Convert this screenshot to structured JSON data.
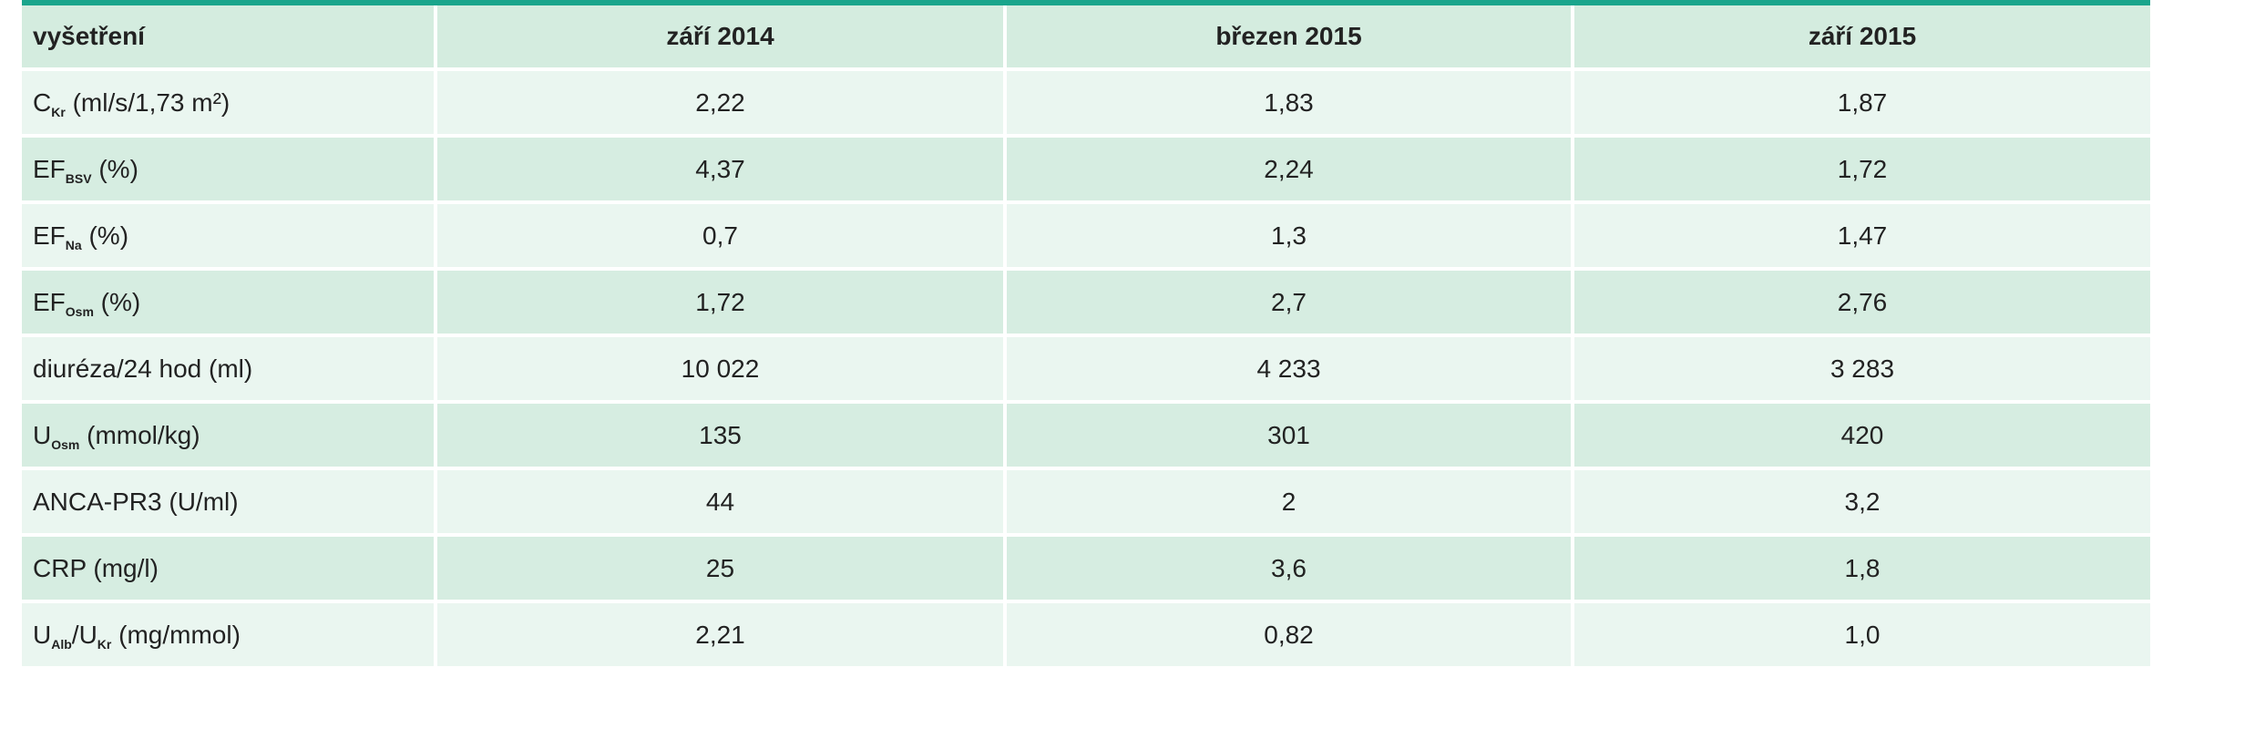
{
  "table": {
    "headers": [
      "vyšetření",
      "září 2014",
      "březen 2015",
      "září 2015"
    ],
    "rows": [
      {
        "label": {
          "main": "C",
          "sub": "Kr",
          "rest": " (ml/s/1,73 m²)"
        },
        "values": [
          "2,22",
          "1,83",
          "1,87"
        ]
      },
      {
        "label": {
          "main": "EF",
          "sub": "BSV",
          "rest": " (%)"
        },
        "values": [
          "4,37",
          "2,24",
          "1,72"
        ]
      },
      {
        "label": {
          "main": "EF",
          "sub": "Na",
          "rest": " (%)"
        },
        "values": [
          "0,7",
          "1,3",
          "1,47"
        ]
      },
      {
        "label": {
          "main": "EF",
          "sub": "Osm",
          "rest": " (%)"
        },
        "values": [
          "1,72",
          "2,7",
          "2,76"
        ]
      },
      {
        "label": {
          "main": "diuréza/24 hod (ml)",
          "sub": "",
          "rest": ""
        },
        "values": [
          "10 022",
          "4 233",
          "3 283"
        ]
      },
      {
        "label": {
          "main": "U",
          "sub": "Osm",
          "rest": " (mmol/kg)"
        },
        "values": [
          "135",
          "301",
          "420"
        ]
      },
      {
        "label": {
          "main": "ANCA-PR3 (U/ml)",
          "sub": "",
          "rest": ""
        },
        "values": [
          "44",
          "2",
          "3,2"
        ]
      },
      {
        "label": {
          "main": "CRP (mg/l)",
          "sub": "",
          "rest": ""
        },
        "values": [
          "25",
          "3,6",
          "1,8"
        ]
      },
      {
        "label": {
          "main": "U",
          "sub": "Alb",
          "rest": "/U",
          "sub2": "Kr",
          "rest2": " (mg/mmol)"
        },
        "values": [
          "2,21",
          "0,82",
          "1,0"
        ]
      }
    ]
  }
}
